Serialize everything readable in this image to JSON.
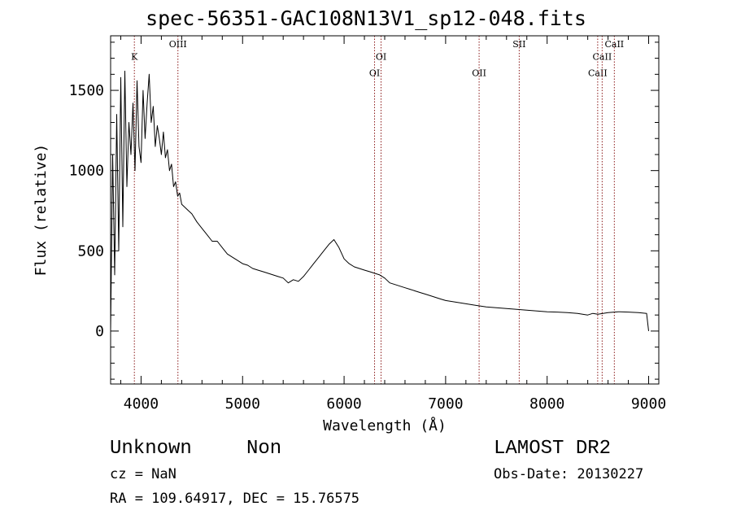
{
  "header": {
    "title": "spec-56351-GAC108N13V1_sp12-048.fits"
  },
  "info": {
    "object_class": "Unknown",
    "object_subclass": "Non",
    "survey": "LAMOST DR2",
    "cz": "cz = NaN",
    "obs_date": "Obs-Date: 20130227",
    "ra_dec": "RA = 109.64917, DEC =  15.76575"
  },
  "colors": {
    "spectrum": "#000000",
    "line_markers": "#8b1a1a",
    "axes": "#000000"
  },
  "chart_data": {
    "type": "line",
    "xlabel": "Wavelength (Å)",
    "ylabel": "Flux (relative)",
    "xlim": [
      3700,
      9100
    ],
    "ylim": [
      -330,
      1840
    ],
    "xticks": [
      4000,
      5000,
      6000,
      7000,
      8000,
      9000
    ],
    "yticks": [
      0,
      500,
      1000,
      1500
    ],
    "grid": false,
    "legend": "none",
    "spectral_lines": [
      {
        "name": "K",
        "wavelength": 3934,
        "label_y": 1690
      },
      {
        "name": "OIII",
        "wavelength": 4363,
        "label_y": 1770
      },
      {
        "name": "OI",
        "wavelength": 6300,
        "label_y": 1590
      },
      {
        "name": "OI",
        "wavelength": 6364,
        "label_y": 1690
      },
      {
        "name": "OII",
        "wavelength": 7330,
        "label_y": 1590
      },
      {
        "name": "SII",
        "wavelength": 7725,
        "label_y": 1770
      },
      {
        "name": "CaII",
        "wavelength": 8498,
        "label_y": 1590
      },
      {
        "name": "CaII",
        "wavelength": 8542,
        "label_y": 1690
      },
      {
        "name": "CaII",
        "wavelength": 8662,
        "label_y": 1770
      }
    ],
    "series": [
      {
        "x": [
          3700,
          3720,
          3740,
          3760,
          3780,
          3800,
          3820,
          3840,
          3860,
          3880,
          3900,
          3920,
          3940,
          3960,
          3980,
          4000,
          4020,
          4040,
          4060,
          4080,
          4100,
          4120,
          4140,
          4160,
          4180,
          4200,
          4220,
          4240,
          4260,
          4280,
          4300,
          4320,
          4340,
          4360,
          4380,
          4400,
          4450,
          4500,
          4550,
          4600,
          4650,
          4700,
          4750,
          4800,
          4850,
          4900,
          4950,
          5000,
          5050,
          5100,
          5150,
          5200,
          5250,
          5300,
          5350,
          5400,
          5450,
          5500,
          5550,
          5600,
          5650,
          5700,
          5750,
          5800,
          5850,
          5900,
          5950,
          6000,
          6050,
          6100,
          6150,
          6200,
          6250,
          6300,
          6350,
          6400,
          6450,
          6500,
          6550,
          6600,
          6650,
          6700,
          6750,
          6800,
          6850,
          6900,
          6950,
          7000,
          7100,
          7200,
          7300,
          7400,
          7500,
          7600,
          7700,
          7800,
          7900,
          8000,
          8100,
          8200,
          8300,
          8400,
          8450,
          8500,
          8550,
          8600,
          8700,
          8800,
          8900,
          8980,
          9000
        ],
        "y": [
          0,
          1100,
          350,
          1350,
          500,
          1580,
          650,
          1620,
          900,
          1300,
          1100,
          1420,
          1000,
          1560,
          1150,
          1050,
          1500,
          1200,
          1420,
          1600,
          1300,
          1400,
          1150,
          1280,
          1200,
          1100,
          1240,
          1080,
          1130,
          1000,
          1040,
          900,
          930,
          840,
          860,
          790,
          760,
          730,
          680,
          640,
          600,
          560,
          560,
          520,
          480,
          460,
          440,
          420,
          410,
          390,
          380,
          370,
          360,
          350,
          340,
          330,
          300,
          320,
          310,
          340,
          380,
          420,
          460,
          500,
          540,
          570,
          520,
          450,
          420,
          400,
          390,
          380,
          370,
          360,
          350,
          330,
          300,
          290,
          280,
          270,
          260,
          250,
          240,
          230,
          220,
          210,
          200,
          190,
          180,
          170,
          160,
          150,
          145,
          140,
          135,
          130,
          125,
          120,
          118,
          115,
          110,
          100,
          110,
          105,
          110,
          115,
          120,
          118,
          115,
          110,
          0
        ]
      }
    ]
  }
}
